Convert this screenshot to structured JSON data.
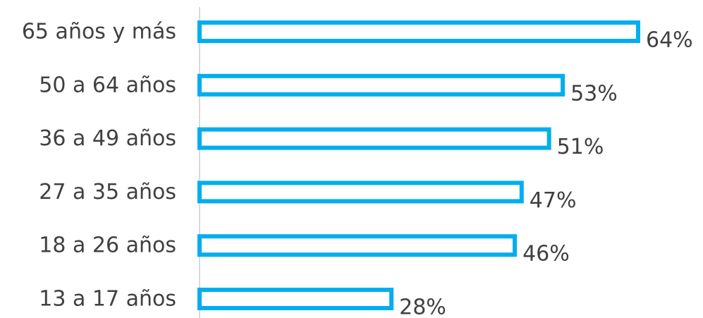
{
  "chart_data": {
    "type": "bar",
    "orientation": "horizontal",
    "title": "",
    "xlabel": "",
    "ylabel": "",
    "categories": [
      "65 años y más",
      "50 a 64 años",
      "36 a 49 años",
      "27 a 35 años",
      "18 a 26 años",
      "13 a 17 años"
    ],
    "values": [
      64,
      53,
      51,
      47,
      46,
      28
    ],
    "value_labels": [
      "64%",
      "53%",
      "51%",
      "47%",
      "46%",
      "28%"
    ],
    "xlim": [
      0,
      64
    ],
    "grid": false,
    "legend": "none",
    "bar_style": "outline",
    "colors": {
      "bar_stroke": "#00AEEF",
      "bar_fill": "#FFFFFF",
      "text": "#404040",
      "axis": "#D9D9D9"
    }
  }
}
